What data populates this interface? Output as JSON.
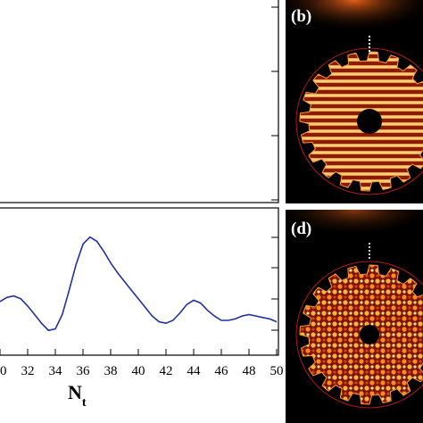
{
  "chart_data": [
    {
      "type": "line",
      "panel": "",
      "series": [],
      "xlim": [
        30,
        50
      ],
      "xticks": [
        30,
        32,
        34,
        36,
        38,
        40,
        42,
        44,
        46,
        48,
        50
      ],
      "xlabel": "",
      "grid": false
    },
    {
      "type": "line",
      "panel": "",
      "series": [
        {
          "name": "",
          "color": "#1f2fa8",
          "x": [
            30,
            30.5,
            31,
            31.5,
            32,
            32.5,
            33,
            33.5,
            34,
            34.5,
            35,
            35.5,
            36,
            36.5,
            37,
            37.5,
            38,
            38.5,
            39,
            39.5,
            40,
            40.5,
            41,
            41.5,
            42,
            42.5,
            43,
            43.5,
            44,
            44.5,
            45,
            45.5,
            46,
            46.5,
            47,
            47.5,
            48,
            48.5,
            49,
            49.5,
            50
          ],
          "y": [
            0.36,
            0.39,
            0.4,
            0.38,
            0.33,
            0.27,
            0.21,
            0.16,
            0.17,
            0.27,
            0.44,
            0.62,
            0.76,
            0.81,
            0.78,
            0.71,
            0.63,
            0.56,
            0.5,
            0.44,
            0.38,
            0.32,
            0.26,
            0.22,
            0.21,
            0.23,
            0.28,
            0.34,
            0.37,
            0.35,
            0.3,
            0.26,
            0.23,
            0.23,
            0.24,
            0.26,
            0.27,
            0.26,
            0.25,
            0.24,
            0.22
          ]
        }
      ],
      "xlim": [
        30,
        50
      ],
      "ylim": [
        0,
        1
      ],
      "xticks": [
        30,
        32,
        34,
        36,
        38,
        40,
        42,
        44,
        46,
        48,
        50
      ],
      "xtick_labels": [
        "30",
        "32",
        "34",
        "36",
        "38",
        "40",
        "42",
        "44",
        "46",
        "48",
        "50"
      ],
      "xlabel": "N",
      "xlabel_subscript": "t",
      "grid": false
    }
  ],
  "panels": {
    "b": "(b)",
    "d": "(d)"
  },
  "colors": {
    "curve": "#1f2fa8",
    "map_background": "#000000",
    "map_hot": "#ffdd66",
    "map_mid": "#c0280c",
    "boundary_circle": "#b01818"
  }
}
